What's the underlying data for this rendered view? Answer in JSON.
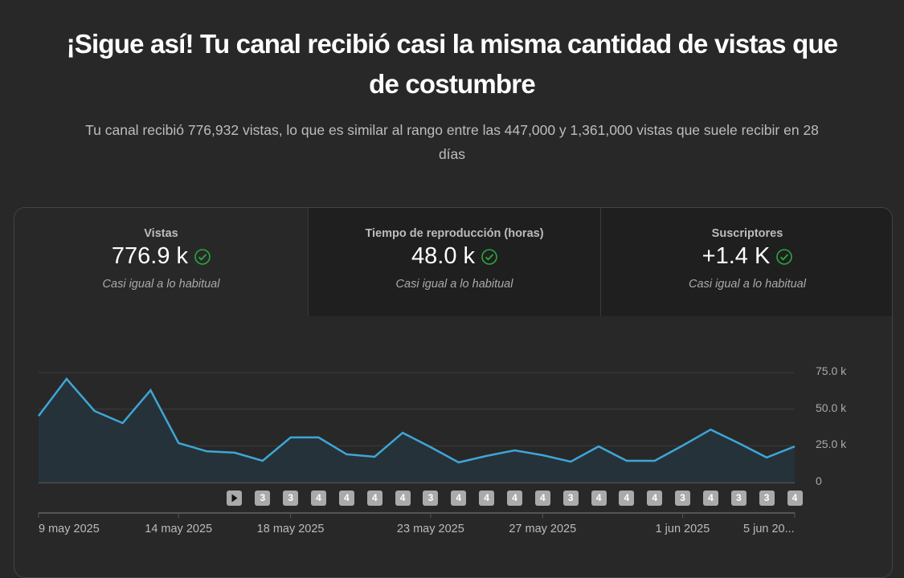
{
  "header": {
    "title": "¡Sigue así! Tu canal recibió casi la misma cantidad de vistas que de costumbre",
    "subtitle": "Tu canal recibió 776,932 vistas, lo que es similar al rango entre las 447,000 y 1,361,000 vistas que suele recibir en 28 días"
  },
  "tabs": [
    {
      "label": "Vistas",
      "value": "776.9 k",
      "comparison": "Casi igual a lo habitual",
      "icon": "check-circle-icon",
      "active": true
    },
    {
      "label": "Tiempo de reproducción (horas)",
      "value": "48.0 k",
      "comparison": "Casi igual a lo habitual",
      "icon": "check-circle-icon",
      "active": false
    },
    {
      "label": "Suscriptores",
      "value": "+1.4 K",
      "comparison": "Casi igual a lo habitual",
      "icon": "check-circle-icon",
      "active": false
    }
  ],
  "colors": {
    "line": "#3ea6d6",
    "check": "#2ba640",
    "background": "#282828"
  },
  "chart_data": {
    "type": "area",
    "ylim": [
      0,
      75000
    ],
    "y_ticks": [
      "0",
      "25.0 k",
      "50.0 k",
      "75.0 k"
    ],
    "y_tick_values": [
      0,
      25000,
      50000,
      75000
    ],
    "x_tick_labels": [
      {
        "label": "9 may 2025",
        "index": 0
      },
      {
        "label": "14 may 2025",
        "index": 5
      },
      {
        "label": "18 may 2025",
        "index": 9
      },
      {
        "label": "23 may 2025",
        "index": 14
      },
      {
        "label": "27 may 2025",
        "index": 18
      },
      {
        "label": "1 jun 2025",
        "index": 23
      },
      {
        "label": "5 jun 20...",
        "index": 27
      }
    ],
    "values": [
      45400,
      70600,
      48700,
      40500,
      62900,
      26800,
      21300,
      20300,
      14800,
      30700,
      30700,
      19200,
      17500,
      33900,
      24100,
      13700,
      18100,
      21900,
      18600,
      14200,
      24600,
      14800,
      14800,
      25200,
      36100,
      26800,
      17000,
      24600
    ],
    "grid": true,
    "content_markers": {
      "start_index": 7,
      "labels": [
        "play",
        "3",
        "3",
        "4",
        "4",
        "4",
        "4",
        "3",
        "4",
        "4",
        "4",
        "4",
        "3",
        "4",
        "4",
        "4",
        "3",
        "4",
        "3",
        "3",
        "4"
      ]
    }
  }
}
